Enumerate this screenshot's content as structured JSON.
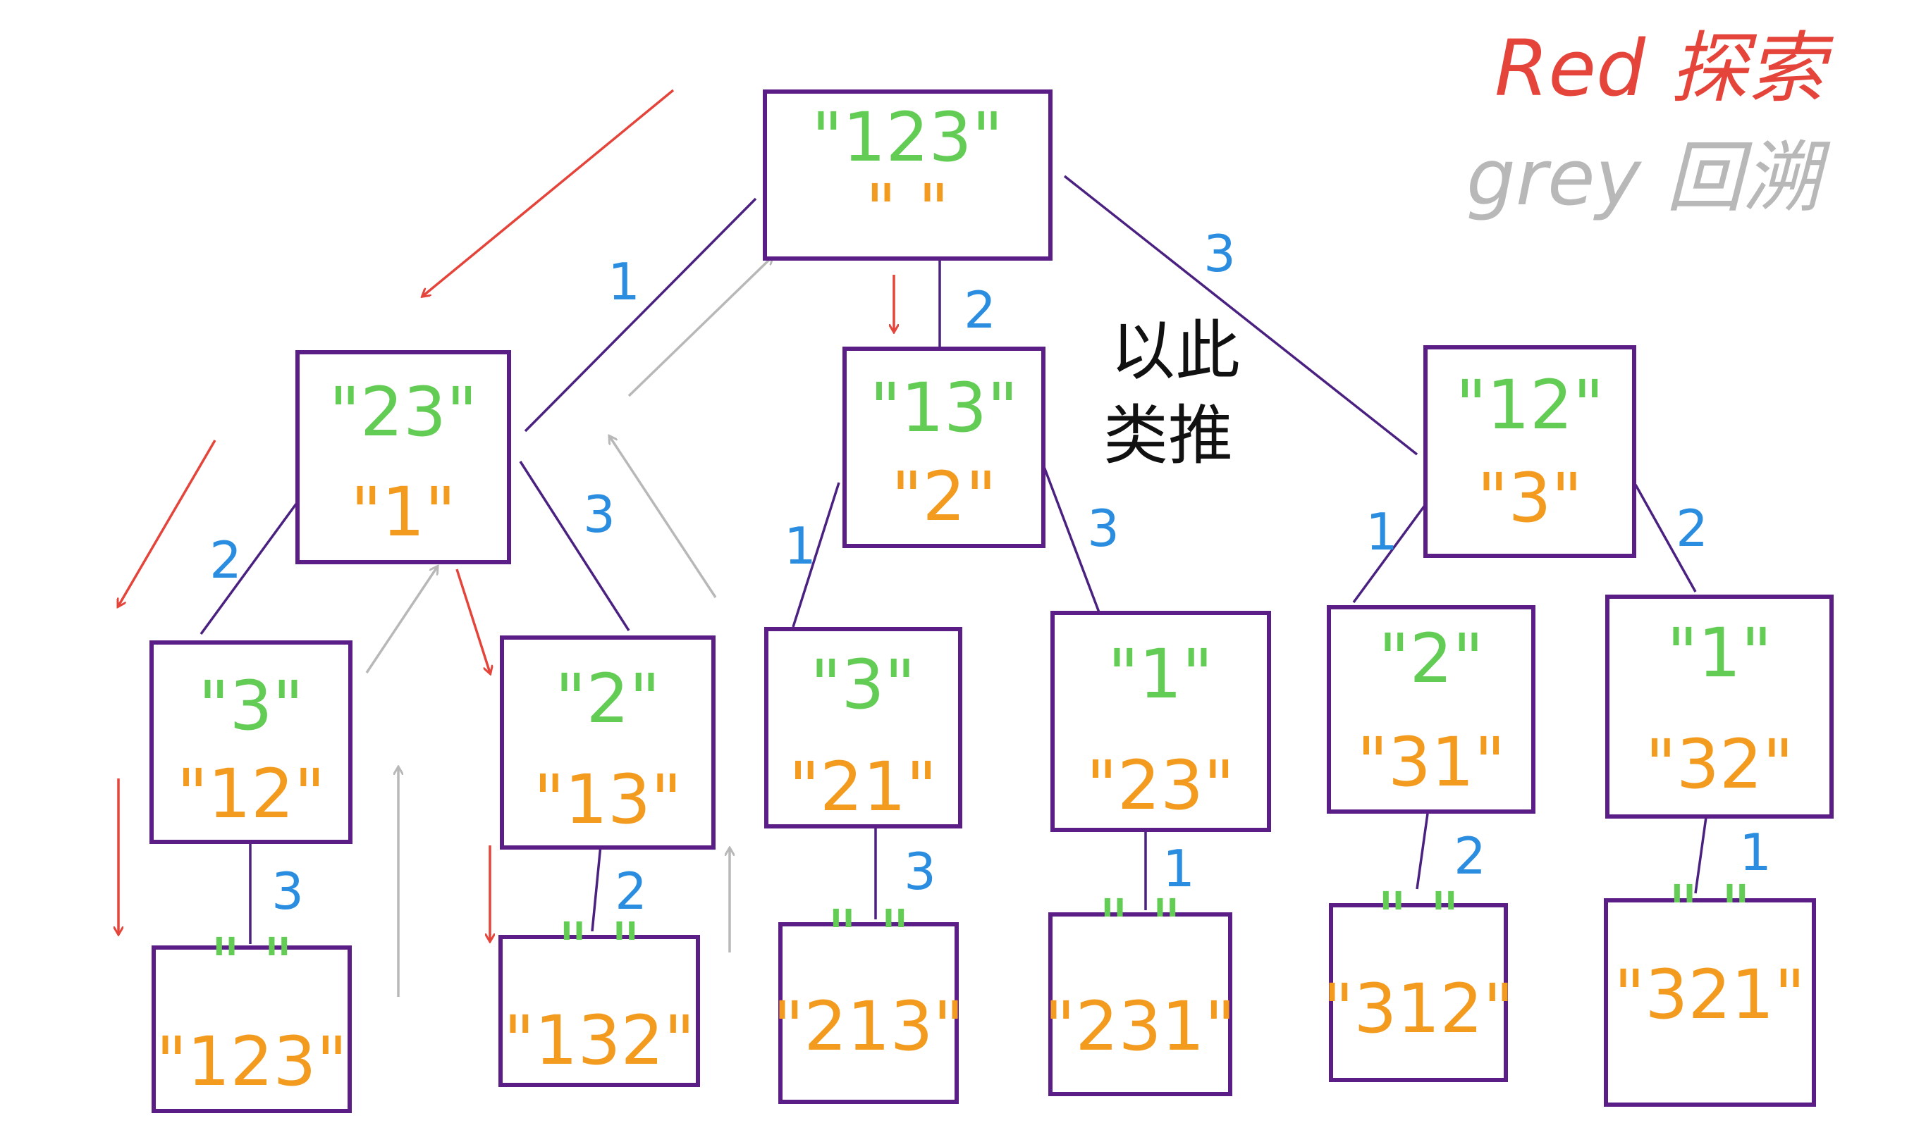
{
  "legend": {
    "explore_label": "Red 探索",
    "backtrack_label": "grey 回溯",
    "explore_color": "#e4443a",
    "backtrack_color": "#b8b8b8"
  },
  "note": {
    "line1": "以此",
    "line2": "类推"
  },
  "tree": {
    "root": {
      "remaining": "\"123\"",
      "path": "\" \""
    },
    "level1": [
      {
        "edge": "1",
        "remaining": "\"23\"",
        "path": "\"1\""
      },
      {
        "edge": "2",
        "remaining": "\"13\"",
        "path": "\"2\""
      },
      {
        "edge": "3",
        "remaining": "\"12\"",
        "path": "\"3\""
      }
    ],
    "level2": [
      {
        "edge": "2",
        "remaining": "\"3\"",
        "path": "\"12\""
      },
      {
        "edge": "3",
        "remaining": "\"2\"",
        "path": "\"13\""
      },
      {
        "edge": "1",
        "remaining": "\"3\"",
        "path": "\"21\""
      },
      {
        "edge": "3",
        "remaining": "\"1\"",
        "path": "\"23\""
      },
      {
        "edge": "1",
        "remaining": "\"2\"",
        "path": "\"31\""
      },
      {
        "edge": "2",
        "remaining": "\"1\"",
        "path": "\"32\""
      }
    ],
    "level3": [
      {
        "edge": "3",
        "remaining": "\" \"",
        "path": "\"123\""
      },
      {
        "edge": "2",
        "remaining": "\" \"",
        "path": "\"132\""
      },
      {
        "edge": "3",
        "remaining": "\" \"",
        "path": "\"213\""
      },
      {
        "edge": "1",
        "remaining": "\" \"",
        "path": "\"231\""
      },
      {
        "edge": "2",
        "remaining": "\" \"",
        "path": "\"312\""
      },
      {
        "edge": "1",
        "remaining": "\" \"",
        "path": "\"321\""
      }
    ]
  }
}
